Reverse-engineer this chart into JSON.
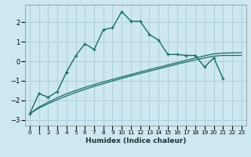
{
  "xlabel": "Humidex (Indice chaleur)",
  "background_color": "#cde8f0",
  "grid_color": "#b0cfd8",
  "line_color": "#1a6b6b",
  "xlim": [
    -0.5,
    23.5
  ],
  "ylim": [
    -3.3,
    2.9
  ],
  "xticks": [
    0,
    1,
    2,
    3,
    4,
    5,
    6,
    7,
    8,
    9,
    10,
    11,
    12,
    13,
    14,
    15,
    16,
    17,
    18,
    19,
    20,
    21,
    22,
    23
  ],
  "yticks": [
    -3,
    -2,
    -1,
    0,
    1,
    2
  ],
  "curve_smooth1": {
    "x": [
      0,
      1,
      2,
      3,
      4,
      5,
      6,
      7,
      8,
      9,
      10,
      11,
      12,
      13,
      14,
      15,
      16,
      17,
      18,
      19,
      20,
      21,
      22,
      23
    ],
    "y": [
      -2.7,
      -2.35,
      -2.1,
      -1.87,
      -1.67,
      -1.5,
      -1.34,
      -1.2,
      -1.06,
      -0.93,
      -0.8,
      -0.68,
      -0.55,
      -0.43,
      -0.31,
      -0.19,
      -0.07,
      0.05,
      0.17,
      0.28,
      0.38,
      0.42,
      0.43,
      0.44
    ]
  },
  "curve_smooth2": {
    "x": [
      0,
      1,
      2,
      3,
      4,
      5,
      6,
      7,
      8,
      9,
      10,
      11,
      12,
      13,
      14,
      15,
      16,
      17,
      18,
      19,
      20,
      21,
      22,
      23
    ],
    "y": [
      -2.7,
      -2.4,
      -2.18,
      -1.97,
      -1.78,
      -1.6,
      -1.44,
      -1.29,
      -1.15,
      -1.01,
      -0.88,
      -0.75,
      -0.63,
      -0.51,
      -0.39,
      -0.27,
      -0.15,
      -0.04,
      0.07,
      0.17,
      0.26,
      0.3,
      0.3,
      0.3
    ]
  },
  "curve_main_segments": [
    {
      "x": [
        0,
        1,
        2,
        3,
        4
      ],
      "y": [
        -2.7,
        -1.65,
        -1.85,
        -1.55,
        -0.55
      ]
    },
    {
      "x": [
        4,
        5,
        6,
        7,
        8,
        9,
        10,
        11,
        12,
        13,
        14,
        15,
        16,
        17,
        18,
        19,
        20,
        21
      ],
      "y": [
        -0.55,
        0.28,
        0.9,
        0.6,
        1.62,
        1.72,
        2.55,
        2.05,
        2.05,
        1.38,
        1.08,
        0.35,
        0.35,
        0.3,
        0.3,
        -0.3,
        0.18,
        -0.88
      ]
    }
  ]
}
